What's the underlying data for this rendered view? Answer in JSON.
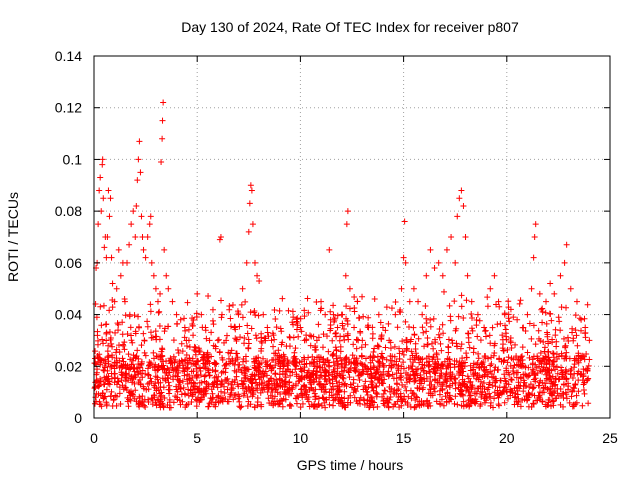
{
  "chart_data": {
    "type": "scatter",
    "title": "Day 130 of 2024, Rate Of TEC Index for receiver p807",
    "xlabel": "GPS time / hours",
    "ylabel": "ROTI / TECUs",
    "xlim": [
      0,
      25
    ],
    "ylim": [
      0,
      0.14
    ],
    "xticks": [
      0,
      5,
      10,
      15,
      20,
      25
    ],
    "xtick_labels": [
      "0",
      "5",
      "10",
      "15",
      "20",
      "25"
    ],
    "yticks": [
      0,
      0.02,
      0.04,
      0.06,
      0.08,
      0.1,
      0.12,
      0.14
    ],
    "ytick_labels": [
      "0",
      "0.02",
      "0.04",
      "0.06",
      "0.08",
      "0.1",
      "0.12",
      "0.14"
    ],
    "grid": true,
    "marker": "+",
    "marker_color": "#ff0000",
    "series": [
      {
        "name": "ROTI",
        "points": [
          [
            0.05,
            0.012
          ],
          [
            0.1,
            0.058
          ],
          [
            0.15,
            0.06
          ],
          [
            0.2,
            0.075
          ],
          [
            0.25,
            0.088
          ],
          [
            0.3,
            0.093
          ],
          [
            0.35,
            0.08
          ],
          [
            0.4,
            0.098
          ],
          [
            0.42,
            0.1
          ],
          [
            0.45,
            0.085
          ],
          [
            0.5,
            0.066
          ],
          [
            0.55,
            0.07
          ],
          [
            0.6,
            0.062
          ],
          [
            0.65,
            0.07
          ],
          [
            0.7,
            0.088
          ],
          [
            0.75,
            0.078
          ],
          [
            0.8,
            0.085
          ],
          [
            0.85,
            0.062
          ],
          [
            0.9,
            0.052
          ],
          [
            1.0,
            0.045
          ],
          [
            1.1,
            0.05
          ],
          [
            1.2,
            0.065
          ],
          [
            1.3,
            0.055
          ],
          [
            1.4,
            0.06
          ],
          [
            1.5,
            0.045
          ],
          [
            1.6,
            0.06
          ],
          [
            1.7,
            0.067
          ],
          [
            1.8,
            0.075
          ],
          [
            1.9,
            0.08
          ],
          [
            2.0,
            0.07
          ],
          [
            2.05,
            0.082
          ],
          [
            2.1,
            0.092
          ],
          [
            2.15,
            0.1
          ],
          [
            2.2,
            0.107
          ],
          [
            2.25,
            0.095
          ],
          [
            2.3,
            0.078
          ],
          [
            2.35,
            0.07
          ],
          [
            2.4,
            0.065
          ],
          [
            2.5,
            0.062
          ],
          [
            2.6,
            0.07
          ],
          [
            2.7,
            0.075
          ],
          [
            2.75,
            0.078
          ],
          [
            2.8,
            0.06
          ],
          [
            2.9,
            0.055
          ],
          [
            3.0,
            0.05
          ],
          [
            3.1,
            0.045
          ],
          [
            3.2,
            0.048
          ],
          [
            3.25,
            0.099
          ],
          [
            3.3,
            0.108
          ],
          [
            3.32,
            0.115
          ],
          [
            3.35,
            0.122
          ],
          [
            3.4,
            0.065
          ],
          [
            3.5,
            0.055
          ],
          [
            3.6,
            0.05
          ],
          [
            3.8,
            0.045
          ],
          [
            4.0,
            0.04
          ],
          [
            4.2,
            0.038
          ],
          [
            4.4,
            0.035
          ],
          [
            4.6,
            0.03
          ],
          [
            4.8,
            0.032
          ],
          [
            5.0,
            0.048
          ],
          [
            5.2,
            0.04
          ],
          [
            5.4,
            0.035
          ],
          [
            5.6,
            0.03
          ],
          [
            5.8,
            0.028
          ],
          [
            6.0,
            0.03
          ],
          [
            6.1,
            0.069
          ],
          [
            6.15,
            0.07
          ],
          [
            6.2,
            0.04
          ],
          [
            6.4,
            0.03
          ],
          [
            6.6,
            0.025
          ],
          [
            6.8,
            0.035
          ],
          [
            7.0,
            0.04
          ],
          [
            7.2,
            0.05
          ],
          [
            7.4,
            0.06
          ],
          [
            7.5,
            0.072
          ],
          [
            7.55,
            0.083
          ],
          [
            7.6,
            0.09
          ],
          [
            7.65,
            0.088
          ],
          [
            7.7,
            0.075
          ],
          [
            7.8,
            0.06
          ],
          [
            7.9,
            0.055
          ],
          [
            8.0,
            0.053
          ],
          [
            8.2,
            0.04
          ],
          [
            8.4,
            0.035
          ],
          [
            8.6,
            0.03
          ],
          [
            8.8,
            0.025
          ],
          [
            9.0,
            0.022
          ],
          [
            9.2,
            0.02
          ],
          [
            9.5,
            0.018
          ],
          [
            9.8,
            0.02
          ],
          [
            10.0,
            0.035
          ],
          [
            10.2,
            0.03
          ],
          [
            10.5,
            0.028
          ],
          [
            10.8,
            0.03
          ],
          [
            11.0,
            0.045
          ],
          [
            11.2,
            0.04
          ],
          [
            11.4,
            0.065
          ],
          [
            11.6,
            0.04
          ],
          [
            11.8,
            0.035
          ],
          [
            12.0,
            0.04
          ],
          [
            12.2,
            0.055
          ],
          [
            12.25,
            0.075
          ],
          [
            12.3,
            0.08
          ],
          [
            12.4,
            0.05
          ],
          [
            12.6,
            0.035
          ],
          [
            12.8,
            0.03
          ],
          [
            13.0,
            0.03
          ],
          [
            13.3,
            0.035
          ],
          [
            13.6,
            0.046
          ],
          [
            13.8,
            0.04
          ],
          [
            14.0,
            0.035
          ],
          [
            14.3,
            0.03
          ],
          [
            14.6,
            0.04
          ],
          [
            14.9,
            0.05
          ],
          [
            15.0,
            0.062
          ],
          [
            15.05,
            0.076
          ],
          [
            15.1,
            0.06
          ],
          [
            15.3,
            0.045
          ],
          [
            15.5,
            0.05
          ],
          [
            15.7,
            0.045
          ],
          [
            15.9,
            0.04
          ],
          [
            16.1,
            0.055
          ],
          [
            16.3,
            0.065
          ],
          [
            16.5,
            0.058
          ],
          [
            16.7,
            0.06
          ],
          [
            16.9,
            0.055
          ],
          [
            17.1,
            0.065
          ],
          [
            17.3,
            0.07
          ],
          [
            17.5,
            0.06
          ],
          [
            17.6,
            0.078
          ],
          [
            17.7,
            0.085
          ],
          [
            17.8,
            0.088
          ],
          [
            17.9,
            0.082
          ],
          [
            18.0,
            0.07
          ],
          [
            18.1,
            0.055
          ],
          [
            18.3,
            0.045
          ],
          [
            18.6,
            0.04
          ],
          [
            18.9,
            0.035
          ],
          [
            19.2,
            0.05
          ],
          [
            19.4,
            0.055
          ],
          [
            19.6,
            0.045
          ],
          [
            19.9,
            0.04
          ],
          [
            20.2,
            0.042
          ],
          [
            20.5,
            0.038
          ],
          [
            20.8,
            0.035
          ],
          [
            21.0,
            0.04
          ],
          [
            21.2,
            0.05
          ],
          [
            21.3,
            0.062
          ],
          [
            21.35,
            0.07
          ],
          [
            21.4,
            0.075
          ],
          [
            21.6,
            0.048
          ],
          [
            21.9,
            0.045
          ],
          [
            22.1,
            0.052
          ],
          [
            22.3,
            0.048
          ],
          [
            22.6,
            0.055
          ],
          [
            22.8,
            0.06
          ],
          [
            22.9,
            0.067
          ],
          [
            23.1,
            0.05
          ],
          [
            23.4,
            0.045
          ],
          [
            23.6,
            0.038
          ],
          [
            23.8,
            0.035
          ],
          [
            24.0,
            0.03
          ]
        ]
      }
    ]
  }
}
